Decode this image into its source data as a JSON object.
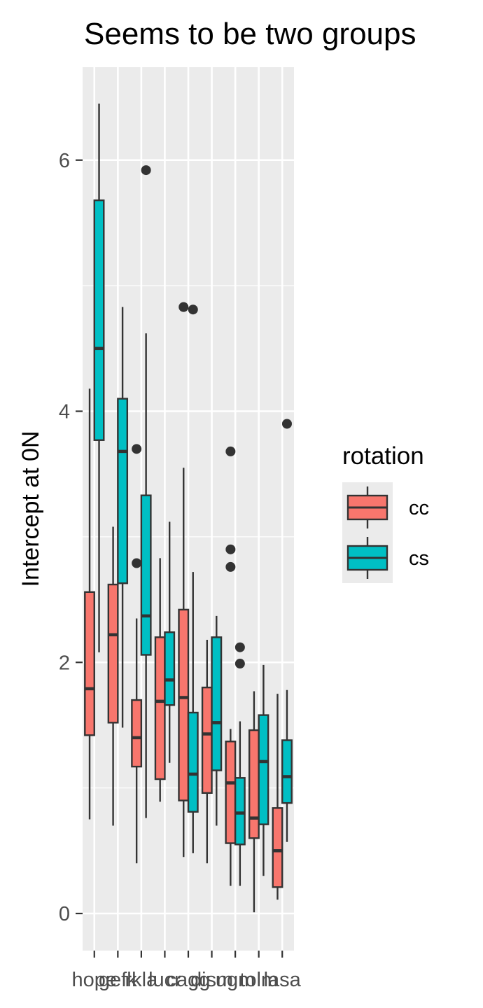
{
  "chart_data": {
    "type": "boxplot",
    "title": "Seems to be two groups",
    "xlabel": "",
    "ylabel": "Intercept at 0N",
    "ylim": [
      -0.3,
      6.75
    ],
    "yticks": [
      0,
      2,
      4,
      6
    ],
    "grid": true,
    "legend": {
      "title": "rotation",
      "position": "right",
      "entries": [
        "cc",
        "cs"
      ]
    },
    "series_colors": {
      "cc": "#F8766D",
      "cs": "#00BFC4"
    },
    "categories": [
      "hope",
      "gefk",
      "rkla",
      "lucr",
      "cagg",
      "dism",
      "ugm",
      "tolm",
      "lasa"
    ],
    "series": [
      {
        "name": "cc",
        "boxes": [
          {
            "category": "hope",
            "whisker_low": 0.75,
            "q1": 1.42,
            "median": 1.79,
            "q3": 2.56,
            "whisker_high": 4.18,
            "outliers": []
          },
          {
            "category": "gefk",
            "whisker_low": 0.7,
            "q1": 1.52,
            "median": 2.22,
            "q3": 2.62,
            "whisker_high": 3.08,
            "outliers": []
          },
          {
            "category": "rkla",
            "whisker_low": 0.4,
            "q1": 1.17,
            "median": 1.4,
            "q3": 1.7,
            "whisker_high": 2.35,
            "outliers": [
              2.79,
              3.7
            ]
          },
          {
            "category": "lucr",
            "whisker_low": 0.89,
            "q1": 1.07,
            "median": 1.69,
            "q3": 2.2,
            "whisker_high": 2.83,
            "outliers": []
          },
          {
            "category": "cagg",
            "whisker_low": 0.45,
            "q1": 0.9,
            "median": 1.72,
            "q3": 2.42,
            "whisker_high": 3.55,
            "outliers": [
              4.83
            ]
          },
          {
            "category": "dism",
            "whisker_low": 0.4,
            "q1": 0.96,
            "median": 1.43,
            "q3": 1.8,
            "whisker_high": 2.18,
            "outliers": []
          },
          {
            "category": "ugm",
            "whisker_low": 0.22,
            "q1": 0.56,
            "median": 1.04,
            "q3": 1.37,
            "whisker_high": 1.47,
            "outliers": [
              2.76,
              2.9,
              3.68
            ]
          },
          {
            "category": "tolm",
            "whisker_low": 0.01,
            "q1": 0.6,
            "median": 0.76,
            "q3": 1.46,
            "whisker_high": 1.77,
            "outliers": []
          },
          {
            "category": "lasa",
            "whisker_low": 0.11,
            "q1": 0.21,
            "median": 0.5,
            "q3": 0.84,
            "whisker_high": 1.75,
            "outliers": []
          }
        ]
      },
      {
        "name": "cs",
        "boxes": [
          {
            "category": "hope",
            "whisker_low": 2.08,
            "q1": 3.77,
            "median": 4.5,
            "q3": 5.68,
            "whisker_high": 6.45,
            "outliers": []
          },
          {
            "category": "gefk",
            "whisker_low": 1.48,
            "q1": 2.63,
            "median": 3.68,
            "q3": 4.1,
            "whisker_high": 4.83,
            "outliers": []
          },
          {
            "category": "rkla",
            "whisker_low": 0.76,
            "q1": 2.06,
            "median": 2.37,
            "q3": 3.33,
            "whisker_high": 4.62,
            "outliers": [
              5.92
            ]
          },
          {
            "category": "lucr",
            "whisker_low": 1.2,
            "q1": 1.66,
            "median": 1.86,
            "q3": 2.24,
            "whisker_high": 3.12,
            "outliers": []
          },
          {
            "category": "cagg",
            "whisker_low": 0.48,
            "q1": 0.81,
            "median": 1.11,
            "q3": 1.6,
            "whisker_high": 2.72,
            "outliers": [
              4.81
            ]
          },
          {
            "category": "dism",
            "whisker_low": 0.7,
            "q1": 1.14,
            "median": 1.52,
            "q3": 2.2,
            "whisker_high": 2.37,
            "outliers": []
          },
          {
            "category": "ugm",
            "whisker_low": 0.22,
            "q1": 0.55,
            "median": 0.8,
            "q3": 1.08,
            "whisker_high": 1.53,
            "outliers": [
              1.99,
              2.12
            ]
          },
          {
            "category": "tolm",
            "whisker_low": 0.3,
            "q1": 0.71,
            "median": 1.21,
            "q3": 1.58,
            "whisker_high": 1.98,
            "outliers": []
          },
          {
            "category": "lasa",
            "whisker_low": 0.57,
            "q1": 0.88,
            "median": 1.09,
            "q3": 1.38,
            "whisker_high": 1.78,
            "outliers": [
              3.9
            ]
          }
        ]
      }
    ]
  }
}
